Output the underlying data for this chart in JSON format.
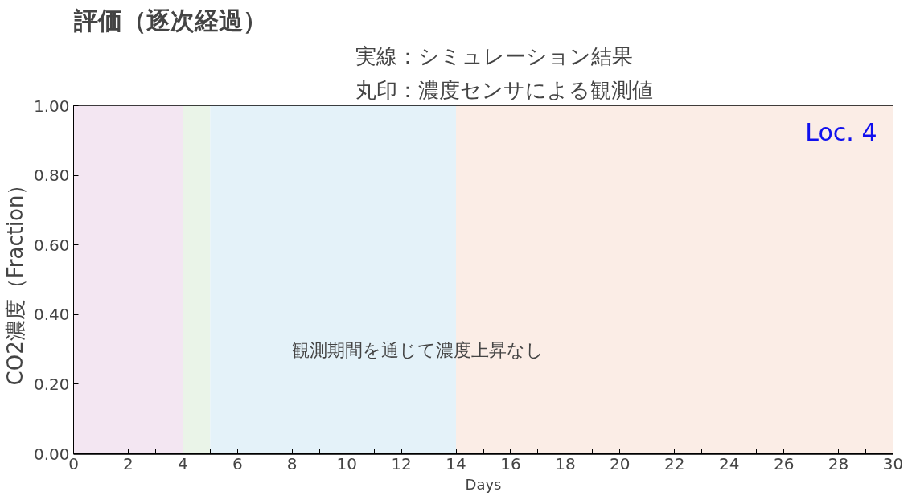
{
  "chart_data": {
    "type": "line",
    "title": "評価（逐次経過）",
    "xlabel": "Days",
    "ylabel": "CO2濃度（Fraction）",
    "x": [
      0,
      30
    ],
    "series": [
      {
        "color": "#000000",
        "values": [
          0,
          0
        ]
      }
    ],
    "marker": "none",
    "line_style": "solid",
    "grid": false,
    "xlim": [
      0,
      30
    ],
    "ylim": [
      0,
      1
    ],
    "xticks": [
      0,
      {
        "value": 1,
        "label": null
      },
      2,
      {
        "value": 3,
        "label": null
      },
      4,
      {
        "value": 5,
        "label": null
      },
      6,
      {
        "value": 7,
        "label": null
      },
      8,
      {
        "value": 9,
        "label": null
      },
      10,
      {
        "value": 11,
        "label": null
      },
      12,
      {
        "value": 13,
        "label": null
      },
      14,
      {
        "value": 15,
        "label": null
      },
      16,
      {
        "value": 17,
        "label": null
      },
      18,
      {
        "value": 19,
        "label": null
      },
      20,
      {
        "value": 21,
        "label": null
      },
      22,
      {
        "value": 23,
        "label": null
      },
      24,
      {
        "value": 25,
        "label": null
      },
      26,
      {
        "value": 27,
        "label": null
      },
      28,
      {
        "value": 29,
        "label": null
      },
      30
    ],
    "yticks": [
      {
        "value": 0,
        "label": "0.00"
      },
      {
        "value": 0.2,
        "label": "0.20"
      },
      {
        "value": 0.4,
        "label": "0.40"
      },
      {
        "value": 0.6,
        "label": "0.60"
      },
      {
        "value": 0.8,
        "label": "0.80"
      },
      {
        "value": 1,
        "label": "1.00"
      }
    ],
    "bands": [
      {
        "axis": "x",
        "from": 0,
        "to": 4,
        "color": "#f3e6f2"
      },
      {
        "axis": "x",
        "from": 4,
        "to": 5,
        "color": "#eaf4e8"
      },
      {
        "axis": "x",
        "from": 5,
        "to": 14,
        "color": "#e4f2f9"
      },
      {
        "axis": "x",
        "from": 14,
        "to": 30,
        "color": "#fbede6"
      }
    ],
    "annotations": [
      "実線：シミュレーション結果",
      "丸印：濃度センサによる観測値",
      "Loc. 4",
      "観測期間を通じて濃度上昇なし"
    ]
  }
}
